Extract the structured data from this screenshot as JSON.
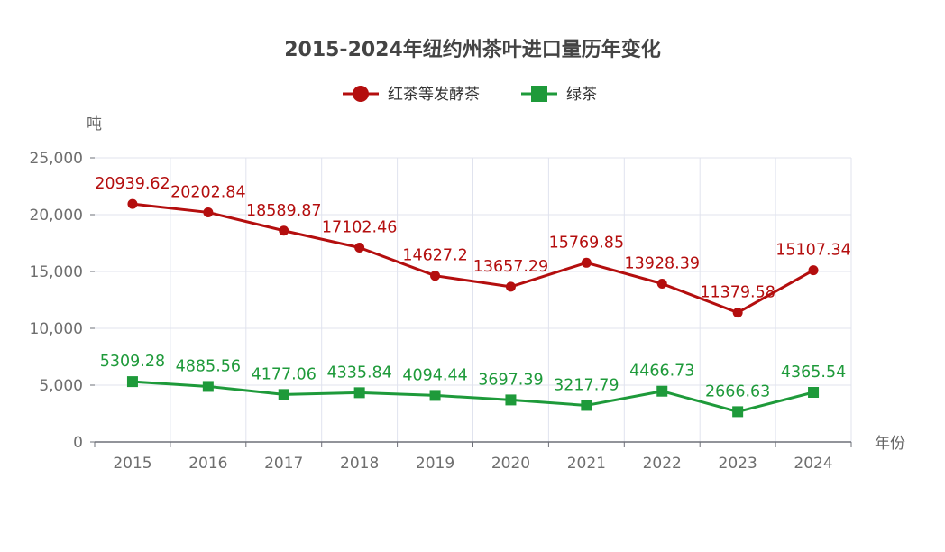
{
  "chart_data": {
    "type": "line",
    "title": "2015-2024年纽约州茶叶进口量历年变化",
    "xlabel": "年份",
    "ylabel": "吨",
    "categories": [
      "2015",
      "2016",
      "2017",
      "2018",
      "2019",
      "2020",
      "2021",
      "2022",
      "2023",
      "2024"
    ],
    "ylim": [
      0,
      25000
    ],
    "yticks": [
      0,
      5000,
      10000,
      15000,
      20000,
      25000
    ],
    "ytick_labels": [
      "0",
      "5,000",
      "10,000",
      "15,000",
      "20,000",
      "25,000"
    ],
    "grid": true,
    "legend_position": "top-center",
    "series": [
      {
        "name": "红茶等发酵茶",
        "color": "#b40e0e",
        "marker": "circle",
        "values": [
          20939.62,
          20202.84,
          18589.87,
          17102.46,
          14627.2,
          13657.29,
          15769.85,
          13928.39,
          11379.58,
          15107.34
        ],
        "labels": [
          "20939.62",
          "20202.84",
          "18589.87",
          "17102.46",
          "14627.2",
          "13657.29",
          "15769.85",
          "13928.39",
          "11379.58",
          "15107.34"
        ]
      },
      {
        "name": "绿茶",
        "color": "#1e9a3a",
        "marker": "square",
        "values": [
          5309.28,
          4885.56,
          4177.06,
          4335.84,
          4094.44,
          3697.39,
          3217.79,
          4466.73,
          2666.63,
          4365.54
        ],
        "labels": [
          "5309.28",
          "4885.56",
          "4177.06",
          "4335.84",
          "4094.44",
          "3697.39",
          "3217.79",
          "4466.73",
          "2666.63",
          "4365.54"
        ]
      }
    ]
  }
}
